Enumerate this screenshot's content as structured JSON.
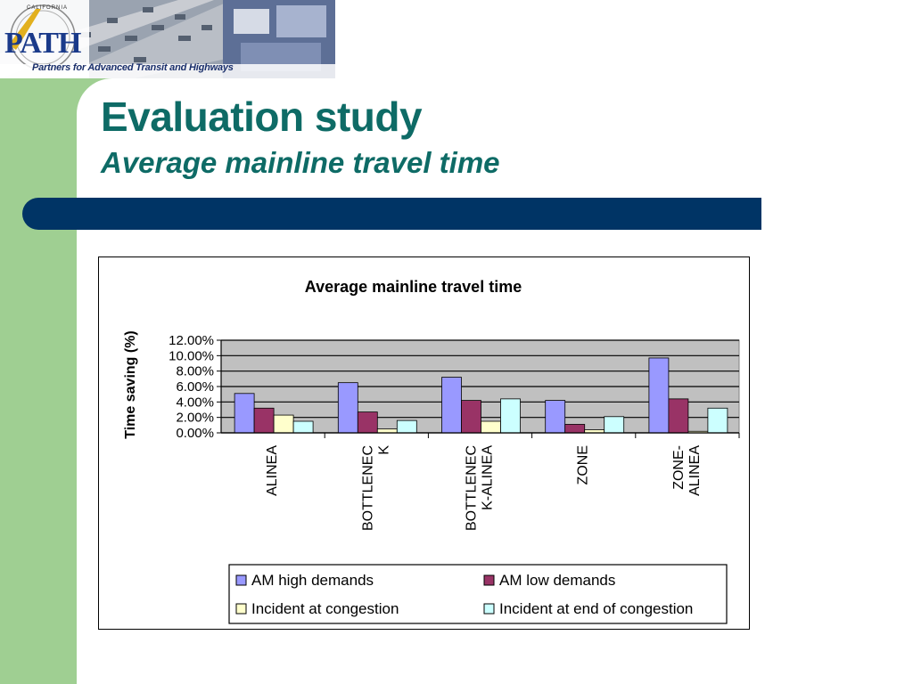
{
  "header": {
    "logo_text": "PATH",
    "logo_arc_text": "CALIFORNIA",
    "tagline": "Partners for Advanced Transit and Highways"
  },
  "slide": {
    "title": "Evaluation study",
    "subtitle": "Average mainline travel time"
  },
  "colors": {
    "title": "#0e6b66",
    "bar": "#003465",
    "strip": "#9fcf92"
  },
  "chart_data": {
    "type": "bar",
    "title": "Average mainline travel time",
    "ylabel": "Time saving (%)",
    "xlabel": "",
    "ylim": [
      0,
      12
    ],
    "ytick_labels": [
      "0.00%",
      "2.00%",
      "4.00%",
      "6.00%",
      "8.00%",
      "10.00%",
      "12.00%"
    ],
    "yticks": [
      0,
      2,
      4,
      6,
      8,
      10,
      12
    ],
    "categories": [
      [
        "ALINEA"
      ],
      [
        "BOTTLENEC",
        "K"
      ],
      [
        "BOTTLENEC",
        "K-ALINEA"
      ],
      [
        "ZONE"
      ],
      [
        "ZONE-",
        "ALINEA"
      ]
    ],
    "series": [
      {
        "name": "AM high demands",
        "color": "#9999ff",
        "values": [
          5.1,
          6.5,
          7.2,
          4.2,
          9.7
        ]
      },
      {
        "name": "AM low demands",
        "color": "#993366",
        "values": [
          3.2,
          2.7,
          4.2,
          1.1,
          4.4
        ]
      },
      {
        "name": "Incident at congestion",
        "color": "#ffffcc",
        "values": [
          2.3,
          0.5,
          1.5,
          0.4,
          0.2
        ]
      },
      {
        "name": "Incident at end of congestion",
        "color": "#ccffff",
        "values": [
          1.5,
          1.6,
          4.4,
          2.1,
          3.2
        ]
      }
    ],
    "grid": true,
    "plot_background": "#c0c0c0",
    "legend_position": "bottom"
  }
}
